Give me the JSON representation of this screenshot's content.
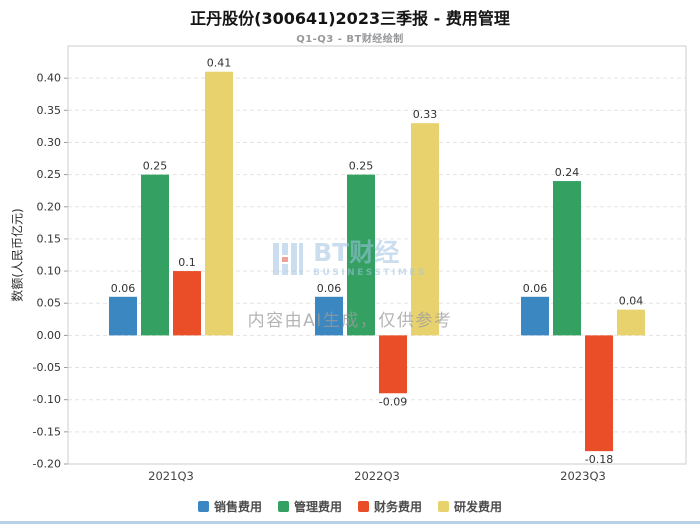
{
  "watermark": {
    "brand": "BT财经",
    "brand_sub": "BUSINESSTIMES",
    "disclaimer": "内容由AI生成，仅供参考"
  },
  "chart_data": {
    "type": "bar",
    "title": "正丹股份(300641)2023三季报 - 费用管理",
    "subtitle": "Q1-Q3 - BT财经绘制",
    "ylabel": "数额(人民币亿元)",
    "xlabel": "",
    "categories": [
      "2021Q3",
      "2022Q3",
      "2023Q3"
    ],
    "series": [
      {
        "key": "sales",
        "name": "销售费用",
        "color": "#3a87c2",
        "values": [
          0.06,
          0.06,
          0.06
        ]
      },
      {
        "key": "admin",
        "name": "管理费用",
        "color": "#34a163",
        "values": [
          0.25,
          0.25,
          0.24
        ]
      },
      {
        "key": "finance",
        "name": "财务费用",
        "color": "#e94e29",
        "values": [
          0.1,
          -0.09,
          -0.18
        ]
      },
      {
        "key": "rd",
        "name": "研发费用",
        "color": "#e8d26e",
        "values": [
          0.41,
          0.33,
          0.04
        ]
      }
    ],
    "ylim": [
      -0.2,
      0.45
    ],
    "ytick_step": 0.05,
    "grid": true,
    "legend_position": "bottom"
  }
}
